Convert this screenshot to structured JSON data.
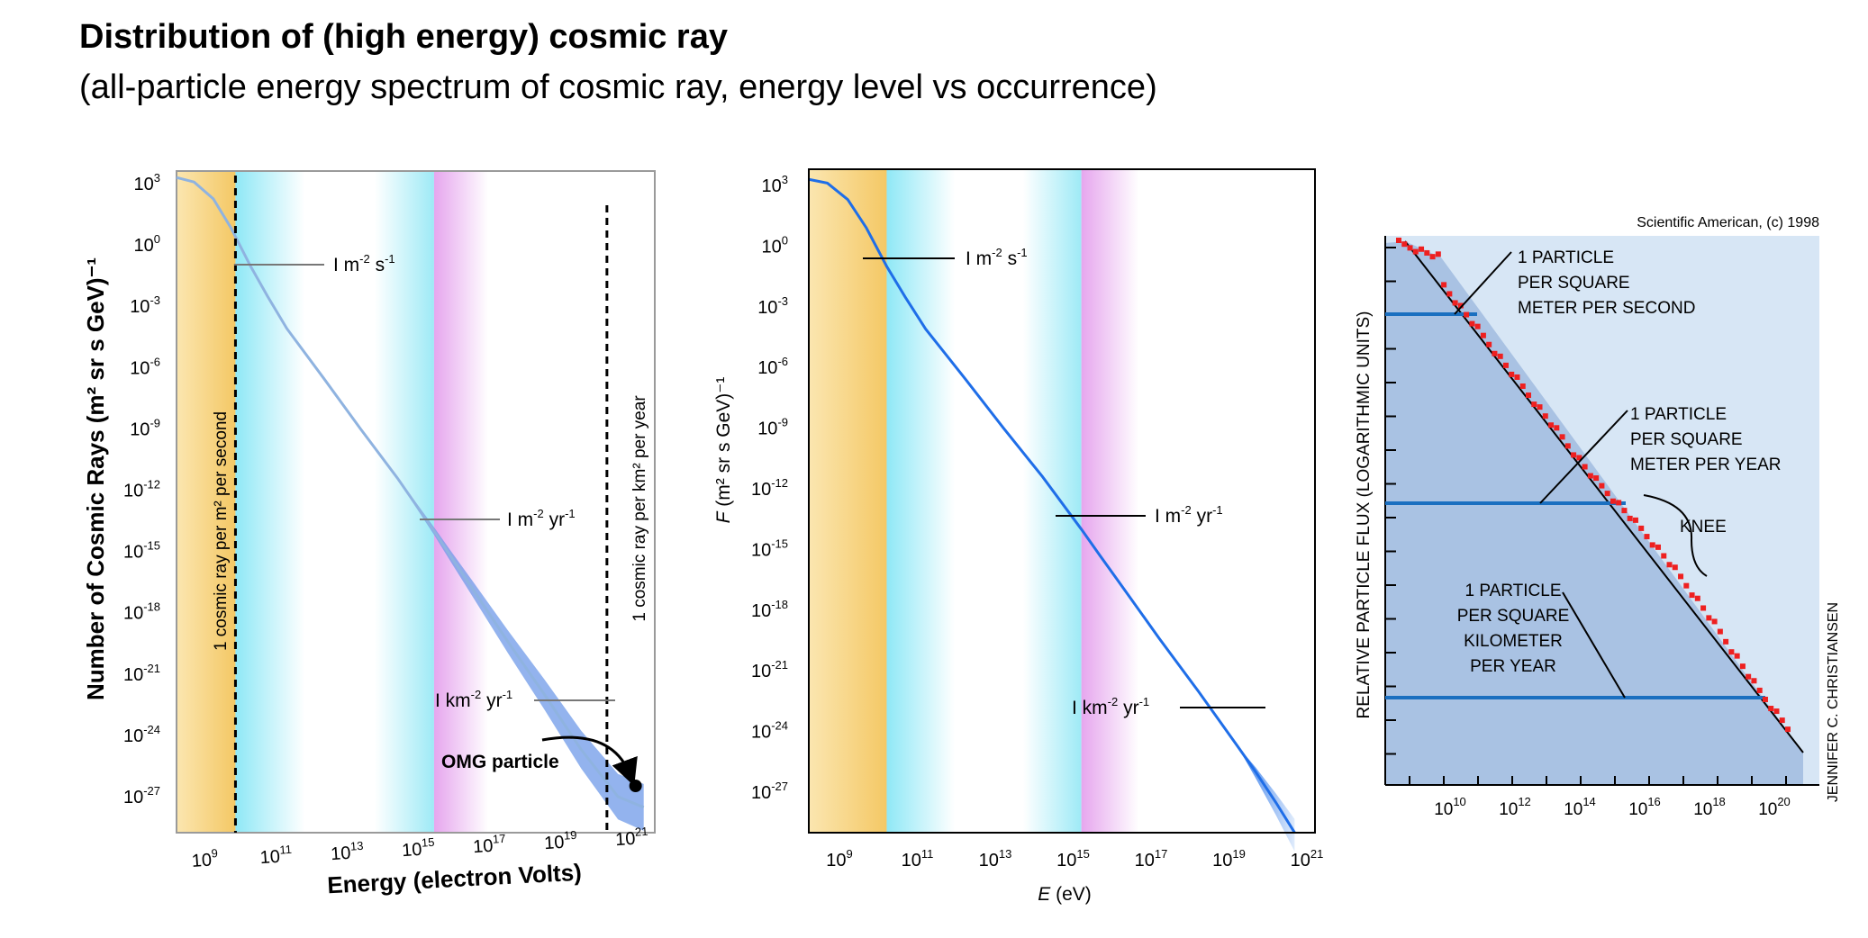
{
  "header": {
    "title": "Distribution of (high energy) cosmic ray",
    "subtitle": "(all-particle energy spectrum of cosmic ray, energy level vs occurrence)"
  },
  "colors": {
    "yellow_band": "#f7d27a",
    "cyan_band": "#aeeef8",
    "pink_band": "#eab6f0",
    "curve_blue": "#1f6ee8",
    "sa_bg": "#d7e6f5",
    "sa_fill": "#a9c2e3",
    "sa_line": "#1a6fc0",
    "sa_points": "#ee2020"
  },
  "chart_data": [
    {
      "type": "line",
      "id": "left",
      "xscale": "log",
      "yscale": "log",
      "xlim": [
        100000000.0,
        1e+21
      ],
      "ylim": [
        1e-28,
        10000.0
      ],
      "xlabel": "Energy (electron Volts)",
      "ylabel": "Number of Cosmic Rays (m² sr s GeV)⁻¹",
      "x_ticks": [
        {
          "b": "10",
          "e": "9"
        },
        {
          "b": "10",
          "e": "11"
        },
        {
          "b": "10",
          "e": "13"
        },
        {
          "b": "10",
          "e": "15"
        },
        {
          "b": "10",
          "e": "17"
        },
        {
          "b": "10",
          "e": "19"
        },
        {
          "b": "10",
          "e": "21"
        }
      ],
      "y_ticks": [
        {
          "b": "10",
          "e": "3"
        },
        {
          "b": "10",
          "e": "0"
        },
        {
          "b": "10",
          "e": "-3"
        },
        {
          "b": "10",
          "e": "-6"
        },
        {
          "b": "10",
          "e": "-9"
        },
        {
          "b": "10",
          "e": "-12"
        },
        {
          "b": "10",
          "e": "-15"
        },
        {
          "b": "10",
          "e": "-18"
        },
        {
          "b": "10",
          "e": "-21"
        },
        {
          "b": "10",
          "e": "-24"
        },
        {
          "b": "10",
          "e": "-27"
        }
      ],
      "series": [
        {
          "x": [
            100000000.0,
            300000000.0,
            1000000000.0,
            3000000000.0,
            10000000000.0,
            30000000000.0,
            100000000000.0,
            1000000000000.0,
            10000000000000.0,
            100000000000000.0,
            1000000000000000.0,
            3000000000000000.0,
            1e+16,
            1e+17,
            1e+18,
            1e+19,
            1e+20,
            5e+20
          ],
          "y": [
            2000,
            1200,
            180,
            7,
            0.1,
            0.003,
            8e-05,
            3e-07,
            1e-09,
            4e-12,
            1e-14,
            5e-16,
            2e-17,
            4e-20,
            1e-22,
            2e-25,
            1e-27,
            3e-28
          ]
        }
      ],
      "vlines": [
        {
          "x": 4000000000.0
        },
        {
          "x": 5e+19
        }
      ],
      "vline_labels": [
        {
          "text": "1 cosmic ray per m² per second"
        },
        {
          "text": "1 cosmic ray per km² per year"
        }
      ],
      "annotations": [
        {
          "x": 1000000000000.0,
          "y": 0.03,
          "text": "I m",
          "sup1": "-2",
          "mid": " s",
          "sup2": "-1"
        },
        {
          "x": 1e+17,
          "y": 3e-13,
          "text": "I m",
          "sup1": "-2",
          "mid": " yr",
          "sup2": "-1"
        },
        {
          "x": 1e+18,
          "y": 3e-22,
          "text": "I km",
          "sup1": "-2",
          "mid": " yr",
          "sup2": "-1"
        },
        {
          "x": 3e+18,
          "y": 1e-25,
          "text": "OMG particle"
        }
      ],
      "omg_point": {
        "x": 3e+20,
        "y": 5e-27
      },
      "bands": [
        {
          "from": 100000000.0,
          "to": 4000000000.0,
          "color": "yellow"
        },
        {
          "from": 4000000000.0,
          "to": 1000000000000000.0,
          "color": "cyan"
        },
        {
          "from": 1000000000000000.0,
          "to": 3e+16,
          "color": "pink"
        }
      ]
    },
    {
      "type": "line",
      "id": "middle",
      "xscale": "log",
      "yscale": "log",
      "xlim": [
        100000000.0,
        1e+21
      ],
      "ylim": [
        1e-29,
        10000.0
      ],
      "xlabel_italic": "E",
      "xlabel_rest": " (eV)",
      "ylabel_italic": "F",
      "ylabel_rest": " (m² sr s GeV)⁻¹",
      "x_ticks": [
        {
          "b": "10",
          "e": "9"
        },
        {
          "b": "10",
          "e": "11"
        },
        {
          "b": "10",
          "e": "13"
        },
        {
          "b": "10",
          "e": "15"
        },
        {
          "b": "10",
          "e": "17"
        },
        {
          "b": "10",
          "e": "19"
        },
        {
          "b": "10",
          "e": "21"
        }
      ],
      "y_ticks": [
        {
          "b": "10",
          "e": "3"
        },
        {
          "b": "10",
          "e": "0"
        },
        {
          "b": "10",
          "e": "-3"
        },
        {
          "b": "10",
          "e": "-6"
        },
        {
          "b": "10",
          "e": "-9"
        },
        {
          "b": "10",
          "e": "-12"
        },
        {
          "b": "10",
          "e": "-15"
        },
        {
          "b": "10",
          "e": "-18"
        },
        {
          "b": "10",
          "e": "-21"
        },
        {
          "b": "10",
          "e": "-24"
        },
        {
          "b": "10",
          "e": "-27"
        }
      ],
      "series": [
        {
          "x": [
            100000000.0,
            300000000.0,
            1000000000.0,
            3000000000.0,
            10000000000.0,
            30000000000.0,
            100000000000.0,
            1000000000000.0,
            10000000000000.0,
            100000000000000.0,
            1000000000000000.0,
            3000000000000000.0,
            1e+16,
            1e+17,
            1e+18,
            1e+19,
            3e+19,
            1e+20,
            3e+20
          ],
          "y": [
            2000,
            1300,
            200,
            8,
            0.1,
            0.003,
            8e-05,
            3e-07,
            1e-09,
            4e-12,
            1e-14,
            5e-16,
            2e-17,
            4e-20,
            1e-22,
            2e-25,
            1e-26,
            3e-28,
            1e-29
          ]
        }
      ],
      "annotations": [
        {
          "x": 1000000000000.0,
          "y": 1,
          "text": "I m",
          "sup1": "-2",
          "mid": " s",
          "sup2": "-1"
        },
        {
          "x": 1e+17,
          "y": 1e-13,
          "text": "I m",
          "sup1": "-2",
          "mid": " yr",
          "sup2": "-1"
        },
        {
          "x": 1e+18,
          "y": 1e-22,
          "text": "I km",
          "sup1": "-2",
          "mid": " yr",
          "sup2": "-1"
        }
      ],
      "bands": [
        {
          "from": 100000000.0,
          "to": 10000000000.0,
          "color": "yellow"
        },
        {
          "from": 10000000000.0,
          "to": 1000000000000000.0,
          "color": "cyan"
        },
        {
          "from": 1000000000000000.0,
          "to": 3e+16,
          "color": "pink"
        }
      ]
    },
    {
      "type": "scatter",
      "id": "right",
      "xscale": "log",
      "xlim": [
        100000000.0,
        1e+21
      ],
      "ylabel": "RELATIVE PARTICLE FLUX (LOGARITHMIC UNITS)",
      "credit_top": "Scientific American, (c) 1998",
      "credit_side": "JENNIFER C. CHRISTIANSEN",
      "x_ticks": [
        {
          "b": "10",
          "e": "10"
        },
        {
          "b": "10",
          "e": "12"
        },
        {
          "b": "10",
          "e": "14"
        },
        {
          "b": "10",
          "e": "16"
        },
        {
          "b": "10",
          "e": "18"
        },
        {
          "b": "10",
          "e": "20"
        }
      ],
      "annotations": [
        {
          "lines": [
            "1 PARTICLE",
            "PER SQUARE",
            "METER PER SECOND"
          ]
        },
        {
          "lines": [
            "1 PARTICLE",
            "PER SQUARE",
            "METER PER YEAR"
          ]
        },
        {
          "lines": [
            "KNEE"
          ]
        },
        {
          "lines": [
            "1 PARTICLE",
            "PER SQUARE",
            "KILOMETER",
            "PER YEAR"
          ]
        }
      ]
    }
  ]
}
